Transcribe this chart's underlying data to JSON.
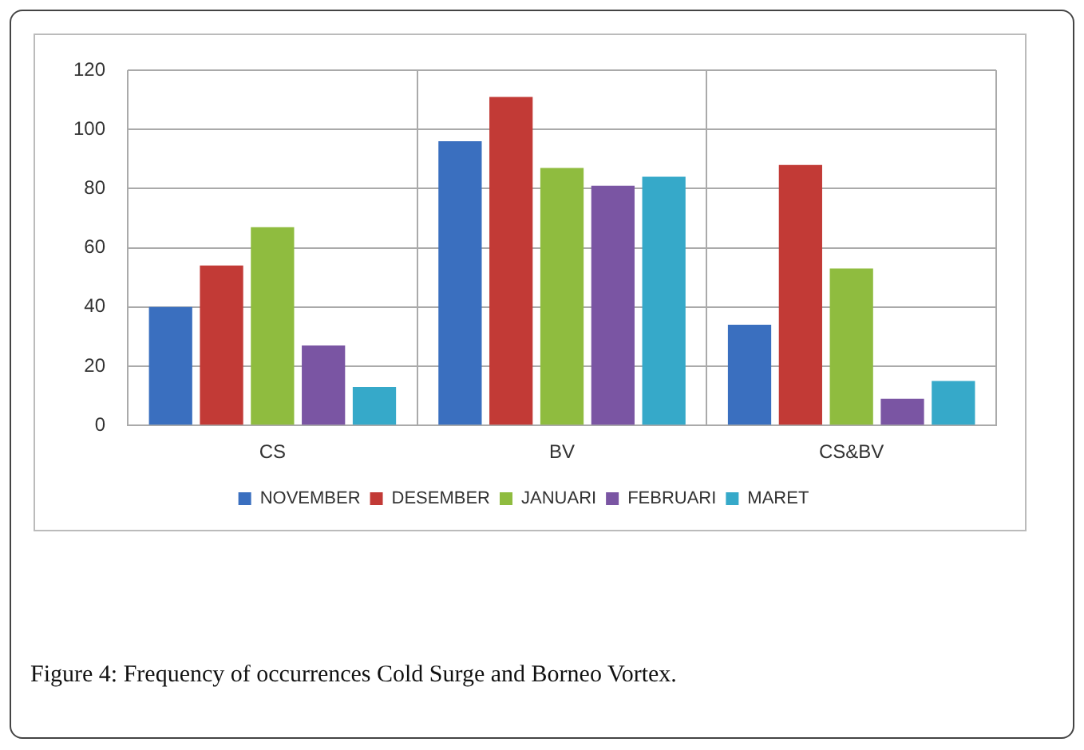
{
  "chart_data": {
    "type": "bar",
    "categories": [
      "CS",
      "BV",
      "CS&BV"
    ],
    "series": [
      {
        "name": "NOVEMBER",
        "color": "#3a6fbf",
        "values": [
          40,
          96,
          34
        ]
      },
      {
        "name": "DESEMBER",
        "color": "#c23a36",
        "values": [
          54,
          111,
          88
        ]
      },
      {
        "name": "JANUARI",
        "color": "#8fbc3f",
        "values": [
          67,
          87,
          53
        ]
      },
      {
        "name": "FEBRUARI",
        "color": "#7a55a3",
        "values": [
          27,
          81,
          9
        ]
      },
      {
        "name": "MARET",
        "color": "#36a9c9",
        "values": [
          13,
          84,
          15
        ]
      }
    ],
    "ylim": [
      0,
      120
    ],
    "yticks": [
      0,
      20,
      40,
      60,
      80,
      100,
      120
    ],
    "grid": true,
    "legend": "bottom",
    "annotations": [
      "Figure 4: Frequency of occurrences Cold Surge and Borneo Vortex."
    ]
  }
}
